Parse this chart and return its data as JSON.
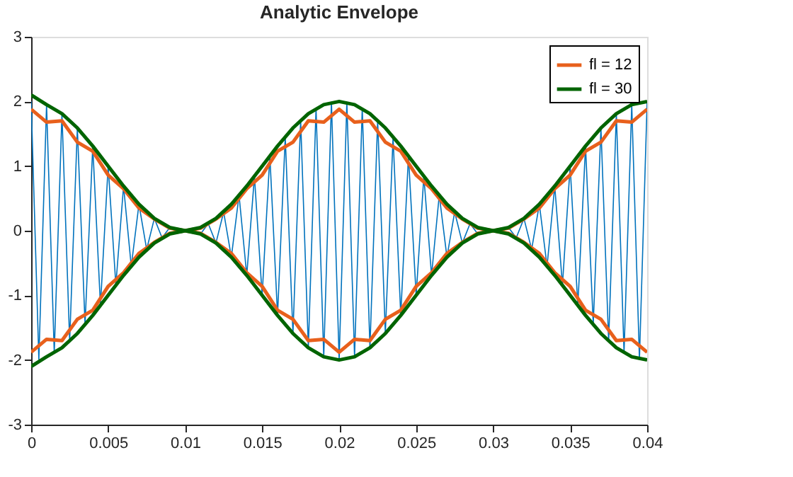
{
  "chart_data": {
    "type": "line",
    "title": "Analytic Envelope",
    "xlim": [
      0,
      0.04
    ],
    "xticks": [
      0,
      0.005,
      0.01,
      0.015,
      0.02,
      0.025,
      0.03,
      0.035,
      0.04
    ],
    "ylim": [
      -3,
      3
    ],
    "yticks": [
      -3,
      -2,
      -1,
      0,
      1,
      2,
      3
    ],
    "grid": false,
    "legend": "top right",
    "marker": "none",
    "line_style": "solid",
    "series": [
      {
        "color": "#0072bd",
        "x": [
          0,
          0.0005,
          0.001,
          0.0015,
          0.002,
          0.0025,
          0.003,
          0.0035,
          0.004,
          0.0045,
          0.005,
          0.0055,
          0.006,
          0.0065,
          0.007,
          0.0075,
          0.008,
          0.0085,
          0.009,
          0.0095,
          0.01,
          0.0105,
          0.011,
          0.0115,
          0.012,
          0.0125,
          0.013,
          0.0135,
          0.014,
          0.0145,
          0.015,
          0.0155,
          0.016,
          0.0165,
          0.017,
          0.0175,
          0.018,
          0.0185,
          0.019,
          0.0195,
          0.02,
          0.0205,
          0.021,
          0.0215,
          0.022,
          0.0225,
          0.023,
          0.0235,
          0.024,
          0.0245,
          0.025,
          0.0255,
          0.026,
          0.0265,
          0.027,
          0.0275,
          0.028,
          0.0285,
          0.029,
          0.0295,
          0.03,
          0.0305,
          0.031,
          0.0315,
          0.032,
          0.0325,
          0.033,
          0.0335,
          0.034,
          0.0345,
          0.035,
          0.0355,
          0.036,
          0.0365,
          0.037,
          0.0375,
          0.038,
          0.0385,
          0.039,
          0.0395,
          0.04
        ],
        "values": [
          2,
          -1.99,
          1.95,
          -1.89,
          1.81,
          -1.71,
          1.59,
          -1.45,
          1.31,
          -1.16,
          1,
          -0.84,
          0.69,
          -0.55,
          0.41,
          -0.29,
          0.19,
          -0.11,
          0.05,
          -0.01,
          0,
          0.01,
          -0.05,
          0.11,
          -0.19,
          0.29,
          -0.41,
          0.55,
          -0.69,
          0.84,
          -1,
          1.16,
          -1.31,
          1.45,
          -1.59,
          1.71,
          -1.81,
          1.89,
          -1.95,
          1.99,
          -2,
          1.99,
          -1.95,
          1.89,
          -1.81,
          1.71,
          -1.59,
          1.45,
          -1.31,
          1.16,
          -1,
          0.84,
          -0.69,
          0.55,
          -0.41,
          0.29,
          -0.19,
          0.11,
          -0.05,
          0.01,
          0,
          -0.01,
          0.05,
          -0.11,
          0.19,
          -0.29,
          0.41,
          -0.55,
          0.69,
          -0.84,
          1,
          -1.16,
          1.31,
          -1.45,
          1.59,
          -1.71,
          1.81,
          -1.89,
          1.95,
          -1.99,
          2
        ]
      },
      {
        "name": "fl = 12",
        "color": "#e8601c",
        "x": [
          0,
          0.001,
          0.002,
          0.003,
          0.004,
          0.005,
          0.006,
          0.007,
          0.008,
          0.009,
          0.01,
          0.011,
          0.012,
          0.013,
          0.014,
          0.015,
          0.016,
          0.017,
          0.018,
          0.019,
          0.02,
          0.021,
          0.022,
          0.023,
          0.024,
          0.025,
          0.026,
          0.027,
          0.028,
          0.029,
          0.03,
          0.031,
          0.032,
          0.033,
          0.034,
          0.035,
          0.036,
          0.037,
          0.038,
          0.039,
          0.04,
          null,
          0,
          0.001,
          0.002,
          0.003,
          0.004,
          0.005,
          0.006,
          0.007,
          0.008,
          0.009,
          0.01,
          0.011,
          0.012,
          0.013,
          0.014,
          0.015,
          0.016,
          0.017,
          0.018,
          0.019,
          0.02,
          0.021,
          0.022,
          0.023,
          0.024,
          0.025,
          0.026,
          0.027,
          0.028,
          0.029,
          0.03,
          0.031,
          0.032,
          0.033,
          0.034,
          0.035,
          0.036,
          0.037,
          0.038,
          0.039,
          0.04
        ],
        "values": [
          1.88,
          1.68,
          1.7,
          1.37,
          1.23,
          0.86,
          0.65,
          0.35,
          0.18,
          0.04,
          0,
          0.04,
          0.18,
          0.35,
          0.65,
          0.86,
          1.23,
          1.37,
          1.7,
          1.68,
          1.88,
          1.68,
          1.7,
          1.37,
          1.23,
          0.86,
          0.65,
          0.35,
          0.18,
          0.04,
          0,
          0.04,
          0.18,
          0.35,
          0.65,
          0.86,
          1.23,
          1.37,
          1.7,
          1.68,
          1.88,
          null,
          -1.88,
          -1.68,
          -1.7,
          -1.37,
          -1.23,
          -0.86,
          -0.65,
          -0.35,
          -0.18,
          -0.04,
          0,
          -0.04,
          -0.18,
          -0.35,
          -0.65,
          -0.86,
          -1.23,
          -1.37,
          -1.7,
          -1.68,
          -1.88,
          -1.68,
          -1.7,
          -1.37,
          -1.23,
          -0.86,
          -0.65,
          -0.35,
          -0.18,
          -0.04,
          0,
          -0.04,
          -0.18,
          -0.35,
          -0.65,
          -0.86,
          -1.23,
          -1.37,
          -1.7,
          -1.68,
          -1.88
        ]
      },
      {
        "name": "fl = 30",
        "color": "#006400",
        "x": [
          0,
          0.001,
          0.002,
          0.003,
          0.004,
          0.005,
          0.006,
          0.007,
          0.008,
          0.009,
          0.01,
          0.011,
          0.012,
          0.013,
          0.014,
          0.015,
          0.016,
          0.017,
          0.018,
          0.019,
          0.02,
          0.021,
          0.022,
          0.023,
          0.024,
          0.025,
          0.026,
          0.027,
          0.028,
          0.029,
          0.03,
          0.031,
          0.032,
          0.033,
          0.034,
          0.035,
          0.036,
          0.037,
          0.038,
          0.039,
          0.04,
          null,
          0,
          0.001,
          0.002,
          0.003,
          0.004,
          0.005,
          0.006,
          0.007,
          0.008,
          0.009,
          0.01,
          0.011,
          0.012,
          0.013,
          0.014,
          0.015,
          0.016,
          0.017,
          0.018,
          0.019,
          0.02,
          0.021,
          0.022,
          0.023,
          0.024,
          0.025,
          0.026,
          0.027,
          0.028,
          0.029,
          0.03,
          0.031,
          0.032,
          0.033,
          0.034,
          0.035,
          0.036,
          0.037,
          0.038,
          0.039,
          0.04
        ],
        "values": [
          2.1,
          1.95,
          1.81,
          1.59,
          1.31,
          1,
          0.69,
          0.41,
          0.19,
          0.05,
          0,
          0.05,
          0.19,
          0.41,
          0.69,
          1,
          1.31,
          1.59,
          1.81,
          1.95,
          2,
          1.95,
          1.81,
          1.59,
          1.31,
          1,
          0.69,
          0.41,
          0.19,
          0.05,
          0,
          0.05,
          0.19,
          0.41,
          0.69,
          1,
          1.31,
          1.59,
          1.81,
          1.95,
          2,
          null,
          -2.1,
          -1.95,
          -1.81,
          -1.59,
          -1.31,
          -1,
          -0.69,
          -0.41,
          -0.19,
          -0.05,
          0,
          -0.05,
          -0.19,
          -0.41,
          -0.69,
          -1,
          -1.31,
          -1.59,
          -1.81,
          -1.95,
          -2,
          -1.95,
          -1.81,
          -1.59,
          -1.31,
          -1,
          -0.69,
          -0.41,
          -0.19,
          -0.05,
          0,
          -0.05,
          -0.19,
          -0.41,
          -0.69,
          -1,
          -1.31,
          -1.59,
          -1.81,
          -1.95,
          -2
        ]
      }
    ]
  }
}
